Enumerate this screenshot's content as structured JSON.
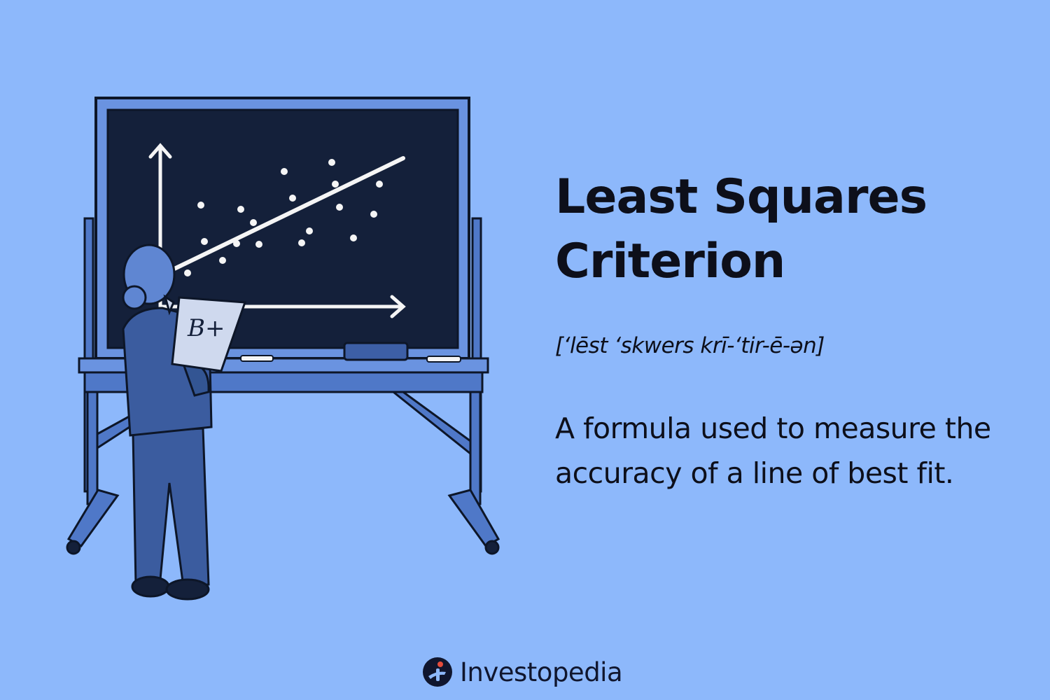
{
  "term": {
    "title_line1": "Least Squares",
    "title_line2": "Criterion",
    "pronunciation": "[‘lēst ‘skwers krī-‘tir-ē-ən]",
    "definition": "A formula used to measure the accuracy of a line of best fit."
  },
  "brand": {
    "name": "Investopedia",
    "accent": "#e44b3b",
    "mark_color": "#10162e"
  },
  "colors": {
    "background": "#8db8fb",
    "board": "#14203a",
    "frame": "#5d86d6",
    "chalk": "#f5f5f5"
  },
  "illustration": {
    "clipboard_text": "B+"
  }
}
